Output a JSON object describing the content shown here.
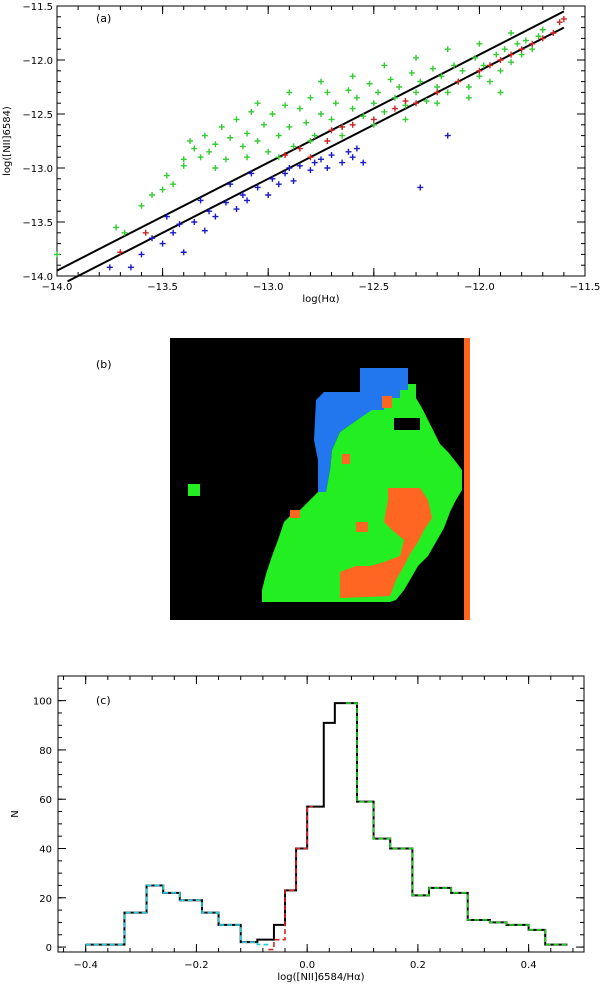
{
  "chart_data": [
    {
      "type": "scatter",
      "panel_label": "(a)",
      "xlabel": "log(Hα)",
      "ylabel": "log([NII]6584)",
      "xlim": [
        -14.0,
        -11.5
      ],
      "ylim": [
        -14.0,
        -11.5
      ],
      "xticks": [
        -14.0,
        -13.5,
        -13.0,
        -12.5,
        -12.0,
        -11.5
      ],
      "xtick_labels": [
        "−14.0",
        "−13.5",
        "−13.0",
        "−12.5",
        "−12.0",
        "−11.5"
      ],
      "yticks": [
        -14.0,
        -13.5,
        -13.0,
        -12.5,
        -12.0,
        -11.5
      ],
      "ytick_labels": [
        "−14.0",
        "−13.5",
        "−13.0",
        "−12.5",
        "−12.0",
        "−11.5"
      ],
      "lines": [
        {
          "x": [
            -14.0,
            -11.6
          ],
          "y": [
            -13.95,
            -11.55
          ],
          "color": "#000000"
        },
        {
          "x": [
            -13.95,
            -11.6
          ],
          "y": [
            -14.05,
            -11.7
          ],
          "color": "#000000"
        }
      ],
      "series": [
        {
          "color": "#33cc33",
          "points": [
            [
              -14.0,
              -13.8
            ],
            [
              -13.72,
              -13.55
            ],
            [
              -13.68,
              -13.6
            ],
            [
              -13.6,
              -13.35
            ],
            [
              -13.55,
              -13.25
            ],
            [
              -13.5,
              -13.2
            ],
            [
              -13.48,
              -13.07
            ],
            [
              -13.45,
              -13.15
            ],
            [
              -13.4,
              -12.92
            ],
            [
              -13.37,
              -12.75
            ],
            [
              -13.35,
              -12.82
            ],
            [
              -13.32,
              -12.9
            ],
            [
              -13.3,
              -12.7
            ],
            [
              -13.28,
              -12.85
            ],
            [
              -13.25,
              -12.78
            ],
            [
              -13.22,
              -12.62
            ],
            [
              -13.2,
              -12.92
            ],
            [
              -13.18,
              -12.72
            ],
            [
              -13.15,
              -12.55
            ],
            [
              -13.12,
              -12.8
            ],
            [
              -13.1,
              -12.68
            ],
            [
              -13.08,
              -12.48
            ],
            [
              -13.05,
              -12.75
            ],
            [
              -13.02,
              -12.6
            ],
            [
              -13.0,
              -12.85
            ],
            [
              -12.98,
              -12.5
            ],
            [
              -12.95,
              -12.7
            ],
            [
              -12.92,
              -12.42
            ],
            [
              -12.9,
              -12.62
            ],
            [
              -12.88,
              -12.8
            ],
            [
              -12.85,
              -12.45
            ],
            [
              -12.82,
              -12.58
            ],
            [
              -12.8,
              -12.35
            ],
            [
              -12.78,
              -12.7
            ],
            [
              -12.75,
              -12.5
            ],
            [
              -12.72,
              -12.3
            ],
            [
              -12.7,
              -12.55
            ],
            [
              -12.68,
              -12.4
            ],
            [
              -12.65,
              -12.62
            ],
            [
              -12.62,
              -12.28
            ],
            [
              -12.6,
              -12.45
            ],
            [
              -12.58,
              -12.35
            ],
            [
              -12.55,
              -12.52
            ],
            [
              -12.52,
              -12.22
            ],
            [
              -12.5,
              -12.4
            ],
            [
              -12.48,
              -12.3
            ],
            [
              -12.45,
              -12.48
            ],
            [
              -12.42,
              -12.18
            ],
            [
              -12.4,
              -12.35
            ],
            [
              -12.38,
              -12.25
            ],
            [
              -12.35,
              -12.42
            ],
            [
              -12.32,
              -12.12
            ],
            [
              -12.3,
              -12.3
            ],
            [
              -12.28,
              -12.2
            ],
            [
              -12.25,
              -12.38
            ],
            [
              -12.22,
              -12.08
            ],
            [
              -12.2,
              -12.25
            ],
            [
              -12.18,
              -12.15
            ],
            [
              -12.15,
              -12.3
            ],
            [
              -12.12,
              -12.05
            ],
            [
              -12.1,
              -12.2
            ],
            [
              -12.08,
              -12.1
            ],
            [
              -12.05,
              -12.25
            ],
            [
              -12.02,
              -11.98
            ],
            [
              -12.0,
              -12.15
            ],
            [
              -11.98,
              -12.05
            ],
            [
              -11.95,
              -12.2
            ],
            [
              -11.92,
              -11.95
            ],
            [
              -11.9,
              -12.1
            ],
            [
              -11.88,
              -11.9
            ],
            [
              -11.85,
              -12.02
            ],
            [
              -11.82,
              -11.85
            ],
            [
              -11.8,
              -11.95
            ],
            [
              -11.78,
              -11.82
            ],
            [
              -11.75,
              -11.9
            ],
            [
              -11.72,
              -11.78
            ],
            [
              -11.7,
              -11.72
            ],
            [
              -11.9,
              -12.3
            ],
            [
              -12.05,
              -12.35
            ],
            [
              -12.2,
              -12.4
            ],
            [
              -12.35,
              -12.55
            ],
            [
              -12.5,
              -12.6
            ],
            [
              -12.65,
              -12.7
            ],
            [
              -12.8,
              -12.75
            ],
            [
              -12.95,
              -12.9
            ],
            [
              -13.1,
              -12.9
            ],
            [
              -13.25,
              -13.0
            ],
            [
              -13.4,
              -12.98
            ],
            [
              -12.6,
              -12.15
            ],
            [
              -12.75,
              -12.2
            ],
            [
              -12.9,
              -12.3
            ],
            [
              -13.05,
              -12.4
            ],
            [
              -12.45,
              -12.05
            ],
            [
              -12.3,
              -11.98
            ],
            [
              -12.15,
              -11.9
            ],
            [
              -12.0,
              -11.85
            ],
            [
              -11.85,
              -11.75
            ]
          ]
        },
        {
          "color": "#cc2222",
          "points": [
            [
              -13.7,
              -13.78
            ],
            [
              -13.58,
              -13.6
            ],
            [
              -12.92,
              -12.88
            ],
            [
              -12.85,
              -12.82
            ],
            [
              -12.8,
              -12.9
            ],
            [
              -12.72,
              -12.75
            ],
            [
              -12.6,
              -12.6
            ],
            [
              -12.5,
              -12.55
            ],
            [
              -12.4,
              -12.45
            ],
            [
              -12.3,
              -12.4
            ],
            [
              -12.2,
              -12.3
            ],
            [
              -12.1,
              -12.2
            ],
            [
              -12.0,
              -12.1
            ],
            [
              -11.95,
              -12.05
            ],
            [
              -11.9,
              -12.0
            ],
            [
              -11.85,
              -11.95
            ],
            [
              -11.8,
              -11.9
            ],
            [
              -11.75,
              -11.85
            ],
            [
              -11.7,
              -11.8
            ],
            [
              -11.65,
              -11.75
            ],
            [
              -11.62,
              -11.65
            ],
            [
              -11.6,
              -11.62
            ],
            [
              -12.7,
              -12.65
            ],
            [
              -12.65,
              -12.62
            ],
            [
              -12.35,
              -12.38
            ]
          ]
        },
        {
          "color": "#1a1acc",
          "points": [
            [
              -13.75,
              -13.92
            ],
            [
              -13.65,
              -13.92
            ],
            [
              -13.6,
              -13.8
            ],
            [
              -13.55,
              -13.65
            ],
            [
              -13.5,
              -13.7
            ],
            [
              -13.45,
              -13.6
            ],
            [
              -13.42,
              -13.52
            ],
            [
              -13.4,
              -13.78
            ],
            [
              -13.35,
              -13.5
            ],
            [
              -13.3,
              -13.58
            ],
            [
              -13.28,
              -13.4
            ],
            [
              -13.25,
              -13.45
            ],
            [
              -13.2,
              -13.32
            ],
            [
              -13.15,
              -13.38
            ],
            [
              -13.12,
              -13.25
            ],
            [
              -13.1,
              -13.3
            ],
            [
              -13.05,
              -13.18
            ],
            [
              -13.0,
              -13.25
            ],
            [
              -12.98,
              -13.1
            ],
            [
              -12.95,
              -13.15
            ],
            [
              -12.92,
              -13.05
            ],
            [
              -12.9,
              -13.0
            ],
            [
              -12.88,
              -13.12
            ],
            [
              -12.85,
              -12.98
            ],
            [
              -12.8,
              -13.02
            ],
            [
              -12.78,
              -12.95
            ],
            [
              -12.75,
              -12.92
            ],
            [
              -12.72,
              -13.0
            ],
            [
              -12.7,
              -12.88
            ],
            [
              -12.65,
              -12.95
            ],
            [
              -12.62,
              -12.85
            ],
            [
              -12.6,
              -12.9
            ],
            [
              -12.58,
              -12.82
            ],
            [
              -12.55,
              -12.95
            ],
            [
              -12.28,
              -13.18
            ],
            [
              -12.15,
              -12.7
            ],
            [
              -13.08,
              -13.05
            ],
            [
              -13.18,
              -13.15
            ],
            [
              -13.32,
              -13.3
            ],
            [
              -13.48,
              -13.45
            ]
          ]
        }
      ]
    },
    {
      "type": "heatmap",
      "panel_label": "(b)",
      "colors": {
        "background": "#000000",
        "blue": "#2277ee",
        "green": "#22ee22",
        "orange": "#ff6622"
      }
    },
    {
      "type": "line",
      "panel_label": "(c)",
      "xlabel": "log([NII]6584/Hα)",
      "ylabel": "N",
      "xlim": [
        -0.45,
        0.5
      ],
      "ylim": [
        -2,
        110
      ],
      "xticks": [
        -0.4,
        -0.2,
        0.0,
        0.2,
        0.4
      ],
      "xtick_labels": [
        "−0.4",
        "−0.2",
        "0.0",
        "0.2",
        "0.4"
      ],
      "yticks": [
        0,
        20,
        40,
        60,
        80,
        100
      ],
      "ytick_labels": [
        "0",
        "20",
        "40",
        "60",
        "80",
        "100"
      ],
      "bin_edges": [
        -0.4,
        -0.36,
        -0.32,
        -0.28,
        -0.24,
        -0.2,
        -0.16,
        -0.12,
        -0.08,
        -0.04,
        0.0,
        0.04,
        0.08,
        0.12,
        0.16,
        0.2,
        0.24,
        0.28,
        0.32,
        0.36,
        0.4,
        0.44,
        0.48
      ],
      "series": [
        {
          "color": "#000000",
          "values": [
            1,
            1,
            14,
            25,
            22,
            19,
            14,
            9,
            2,
            3,
            9,
            23,
            40,
            57,
            91,
            99,
            59,
            44,
            40,
            21,
            24,
            22,
            11,
            10,
            9,
            7,
            1
          ],
          "edges": [
            -0.4,
            -0.36,
            -0.33,
            -0.29,
            -0.26,
            -0.23,
            -0.19,
            -0.16,
            -0.12,
            -0.09,
            -0.06,
            -0.04,
            -0.02,
            0.0,
            0.03,
            0.05,
            0.09,
            0.12,
            0.15,
            0.19,
            0.22,
            0.26,
            0.29,
            0.33,
            0.36,
            0.4,
            0.43,
            0.47
          ]
        },
        {
          "color": "#22ccdd",
          "dashed": true,
          "values": [
            1,
            1,
            14,
            25,
            22,
            19,
            14,
            9,
            2,
            1
          ],
          "edges": [
            -0.4,
            -0.36,
            -0.33,
            -0.29,
            -0.26,
            -0.23,
            -0.19,
            -0.16,
            -0.12,
            -0.09,
            -0.07
          ]
        },
        {
          "color": "#dd2222",
          "dashed": true,
          "values": [
            -1,
            3,
            23,
            40,
            57
          ],
          "edges": [
            -0.07,
            -0.06,
            -0.04,
            -0.02,
            0.0,
            0.01
          ]
        },
        {
          "color": "#22cc22",
          "dashed": true,
          "values": [
            99,
            59,
            44,
            40,
            21,
            24,
            22,
            11,
            10,
            9,
            7,
            1
          ],
          "edges": [
            0.07,
            0.09,
            0.12,
            0.15,
            0.19,
            0.22,
            0.26,
            0.29,
            0.33,
            0.36,
            0.4,
            0.43,
            0.47
          ]
        }
      ]
    }
  ]
}
